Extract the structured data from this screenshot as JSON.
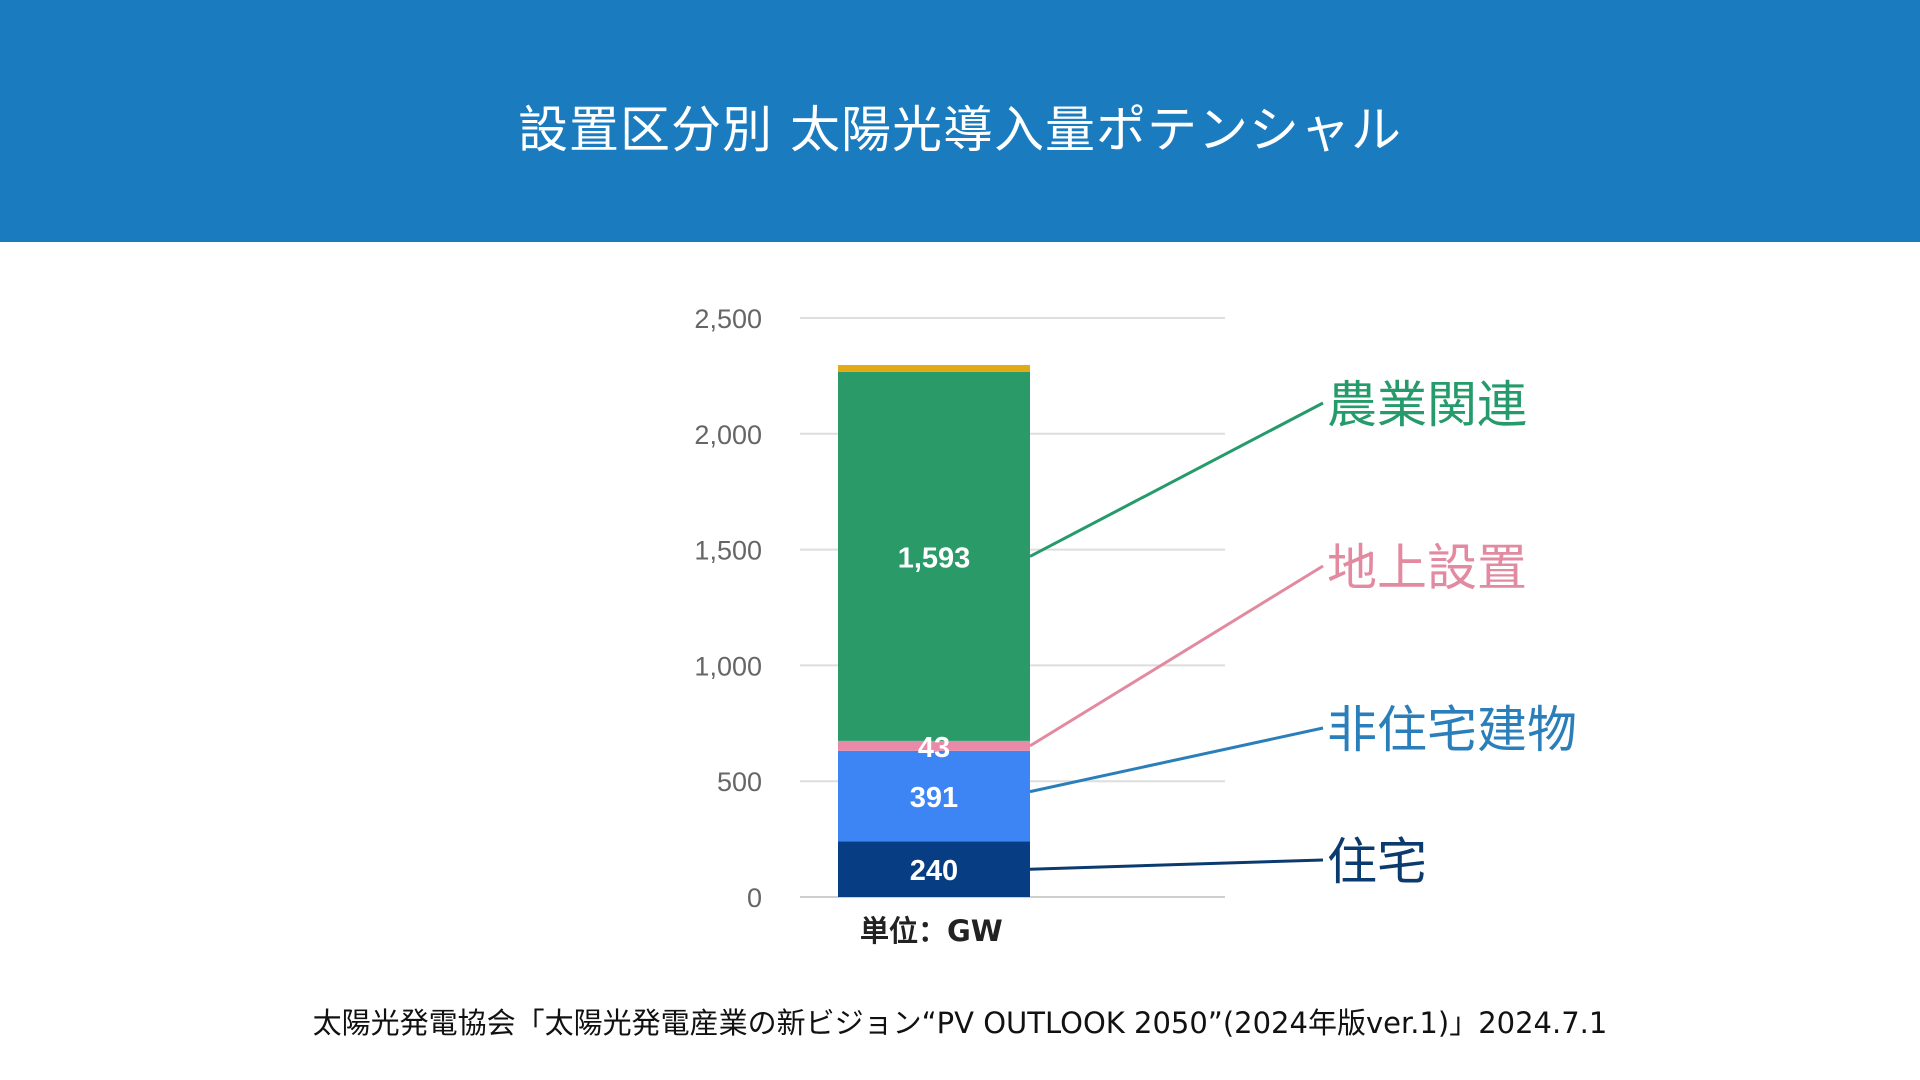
{
  "header": {
    "title": "設置区分別 太陽光導入量ポテンシャル"
  },
  "unit_label": "単位：GW",
  "source": "太陽光発電協会「太陽光発電産業の新ビジョン“PV OUTLOOK 2050”(2024年版ver.1)」2024.7.1",
  "chart_data": {
    "type": "bar",
    "stacked": true,
    "title": "",
    "xlabel": "",
    "ylabel": "",
    "ylim": [
      0,
      2500
    ],
    "yticks": [
      0,
      500,
      1000,
      1500,
      2000,
      2500
    ],
    "ytick_labels": [
      "0",
      "500",
      "1,000",
      "1,500",
      "2,000",
      "2,500"
    ],
    "grid": true,
    "categories": [
      ""
    ],
    "series": [
      {
        "name": "住宅",
        "values": [
          240
        ],
        "value_label": "240",
        "color": "#073d82",
        "label_color": "#0b3a6e"
      },
      {
        "name": "非住宅建物",
        "values": [
          391
        ],
        "value_label": "391",
        "color": "#3d85f5",
        "label_color": "#2a7fba"
      },
      {
        "name": "地上設置",
        "values": [
          43
        ],
        "value_label": "43",
        "color": "#e88aa8",
        "label_color": "#e28aa0"
      },
      {
        "name": "農業関連",
        "values": [
          1593
        ],
        "value_label": "1,593",
        "color": "#2b9a69",
        "label_color": "#259a6a"
      },
      {
        "name": "",
        "values": [
          30
        ],
        "value_label": "",
        "color": "#e3aa18",
        "label_color": "#e3aa18"
      }
    ]
  }
}
